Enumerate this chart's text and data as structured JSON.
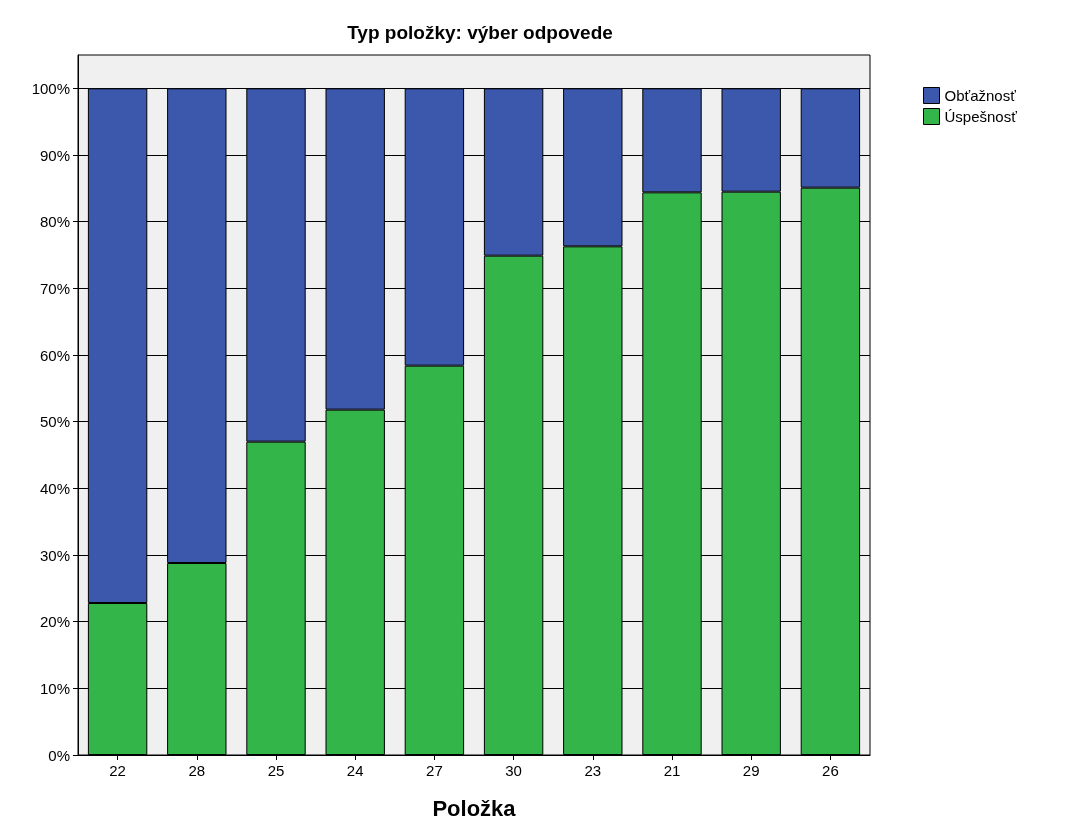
{
  "chart_data": {
    "type": "bar",
    "title": "Typ položky: výber odpovede",
    "xlabel": "Položka",
    "stacked": true,
    "categories": [
      "22",
      "28",
      "25",
      "24",
      "27",
      "30",
      "23",
      "21",
      "29",
      "26"
    ],
    "series": [
      {
        "name": "Úspešnosť",
        "color": "#33b54a",
        "values": [
          22.8,
          28.8,
          47.0,
          51.8,
          58.4,
          74.9,
          76.3,
          84.4,
          84.5,
          85.1
        ]
      },
      {
        "name": "Obťažnosť",
        "color": "#3c58ad",
        "values": [
          77.2,
          71.2,
          53.0,
          48.2,
          41.6,
          25.1,
          23.7,
          15.6,
          15.5,
          14.9
        ]
      }
    ],
    "ylim": [
      0,
      105
    ],
    "yticks": [
      {
        "value": 0,
        "label": "0%"
      },
      {
        "value": 10,
        "label": "10%"
      },
      {
        "value": 20,
        "label": "20%"
      },
      {
        "value": 30,
        "label": "30%"
      },
      {
        "value": 40,
        "label": "40%"
      },
      {
        "value": 50,
        "label": "50%"
      },
      {
        "value": 60,
        "label": "60%"
      },
      {
        "value": 70,
        "label": "70%"
      },
      {
        "value": 80,
        "label": "80%"
      },
      {
        "value": 90,
        "label": "90%"
      },
      {
        "value": 100,
        "label": "100%"
      }
    ],
    "grid": "y",
    "legend": "top right"
  }
}
